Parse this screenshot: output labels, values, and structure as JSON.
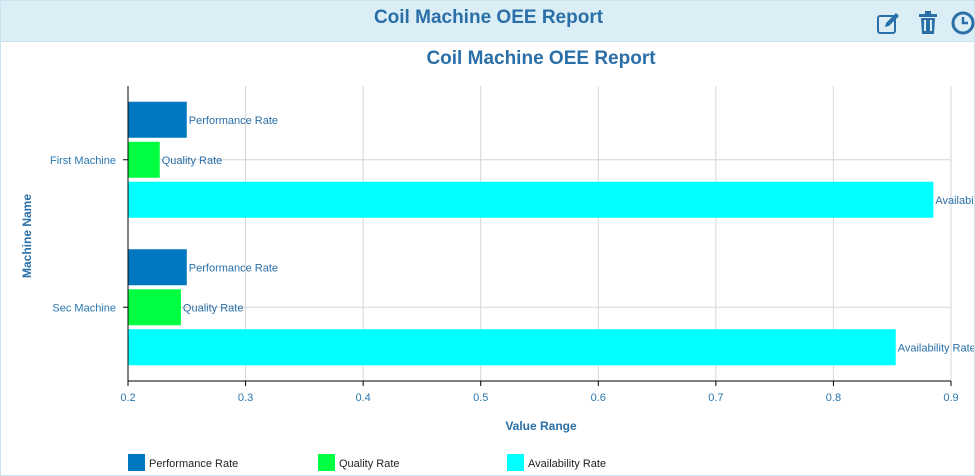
{
  "header": {
    "title": "Coil Machine OEE Report"
  },
  "toolbar": {
    "edit_icon": "edit-icon",
    "delete_icon": "trash-icon",
    "history_icon": "clock-icon"
  },
  "colors": {
    "header_bg": "#dbeef6",
    "accent": "#2a6fa8",
    "performance": "#0077c0",
    "quality": "#00ff40",
    "availability": "#00ffff"
  },
  "chart_data": {
    "type": "bar",
    "orientation": "horizontal",
    "title": "Coil Machine OEE Report",
    "xlabel": "Value Range",
    "ylabel": "Machine Name",
    "categories": [
      "First Machine",
      "Sec Machine"
    ],
    "series": [
      {
        "name": "Performance Rate",
        "color": "#0077c0",
        "values": [
          0.25,
          0.25
        ]
      },
      {
        "name": "Quality Rate",
        "color": "#00ff40",
        "values": [
          0.227,
          0.245
        ]
      },
      {
        "name": "Availability Rate",
        "color": "#00ffff",
        "values": [
          0.885,
          0.853
        ]
      }
    ],
    "xlim": [
      0.2,
      0.9
    ],
    "xticks": [
      "0.2",
      "0.3",
      "0.4",
      "0.5",
      "0.6",
      "0.7",
      "0.8",
      "0.9"
    ],
    "data_labels": [
      "Performance Rate",
      "Quality Rate",
      "Availability Rate"
    ],
    "grid": true,
    "legend_position": "bottom"
  }
}
